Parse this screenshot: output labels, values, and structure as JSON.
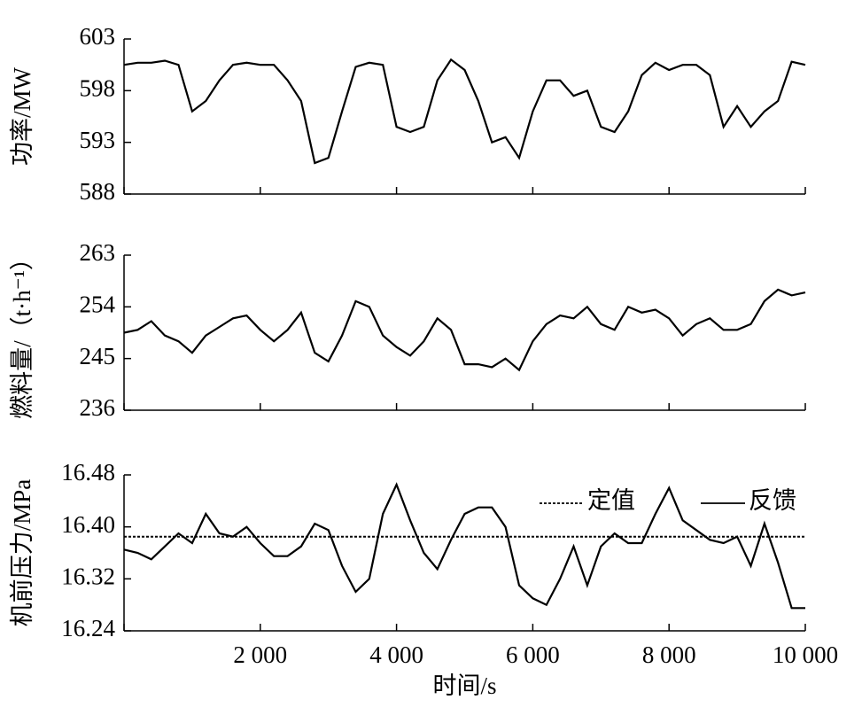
{
  "chart_data": [
    {
      "type": "line",
      "ylabel": "功率/MW",
      "x": [
        0,
        200,
        400,
        600,
        800,
        1000,
        1200,
        1400,
        1600,
        1800,
        2000,
        2200,
        2400,
        2600,
        2800,
        3000,
        3200,
        3400,
        3600,
        3800,
        4000,
        4200,
        4400,
        4600,
        4800,
        5000,
        5200,
        5400,
        5600,
        5800,
        6000,
        6200,
        6400,
        6600,
        6800,
        7000,
        7200,
        7400,
        7600,
        7800,
        8000,
        8200,
        8400,
        8600,
        8800,
        9000,
        9200,
        9400,
        9600,
        9800,
        10000
      ],
      "series": [
        {
          "color": "#000000",
          "values": [
            600.5,
            600.7,
            600.7,
            600.9,
            600.5,
            596,
            597,
            599,
            600.5,
            600.7,
            600.5,
            600.5,
            599,
            597,
            591,
            591.5,
            596,
            600.3,
            600.7,
            600.5,
            594.5,
            594,
            594.5,
            599,
            601,
            600,
            597,
            593,
            593.5,
            591.5,
            596,
            599,
            599,
            597.5,
            598,
            594.5,
            594,
            596,
            599.5,
            600.7,
            600,
            600.5,
            600.5,
            599.5,
            594.5,
            596.5,
            594.5,
            596,
            597,
            600.8,
            600.5
          ]
        }
      ],
      "xlim": [
        0,
        10000
      ],
      "ylim": [
        588,
        603
      ],
      "xticks": [
        0,
        2000,
        4000,
        6000,
        8000,
        10000
      ],
      "yticks": [
        588,
        593,
        598,
        603
      ]
    },
    {
      "type": "line",
      "ylabel": "燃料量/（t·h⁻¹）",
      "x": [
        0,
        200,
        400,
        600,
        800,
        1000,
        1200,
        1400,
        1600,
        1800,
        2000,
        2200,
        2400,
        2600,
        2800,
        3000,
        3200,
        3400,
        3600,
        3800,
        4000,
        4200,
        4400,
        4600,
        4800,
        5000,
        5200,
        5400,
        5600,
        5800,
        6000,
        6200,
        6400,
        6600,
        6800,
        7000,
        7200,
        7400,
        7600,
        7800,
        8000,
        8200,
        8400,
        8600,
        8800,
        9000,
        9200,
        9400,
        9600,
        9800,
        10000
      ],
      "series": [
        {
          "color": "#000000",
          "values": [
            249.5,
            250,
            251.5,
            249,
            248,
            246,
            249,
            250.5,
            252,
            252.5,
            250,
            248,
            250,
            253,
            246,
            244.5,
            249,
            255,
            254,
            249,
            247,
            245.5,
            248,
            252,
            250,
            244,
            244,
            243.5,
            245,
            243,
            248,
            251,
            252.5,
            252,
            254,
            251,
            250,
            254,
            253,
            253.5,
            252,
            249,
            251,
            252,
            250,
            250,
            251,
            255,
            257,
            256,
            256.5
          ]
        }
      ],
      "xlim": [
        0,
        10000
      ],
      "ylim": [
        236,
        263
      ],
      "xticks": [
        0,
        2000,
        4000,
        6000,
        8000,
        10000
      ],
      "yticks": [
        236,
        245,
        254,
        263
      ]
    },
    {
      "type": "line",
      "ylabel": "机前压力/MPa",
      "xlabel": "时间/s",
      "legend": "upper right",
      "x": [
        0,
        200,
        400,
        600,
        800,
        1000,
        1200,
        1400,
        1600,
        1800,
        2000,
        2200,
        2400,
        2600,
        2800,
        3000,
        3200,
        3400,
        3600,
        3800,
        4000,
        4200,
        4400,
        4600,
        4800,
        5000,
        5200,
        5400,
        5600,
        5800,
        6000,
        6200,
        6400,
        6600,
        6800,
        7000,
        7200,
        7400,
        7600,
        7800,
        8000,
        8200,
        8400,
        8600,
        8800,
        9000,
        9200,
        9400,
        9600,
        9800,
        10000
      ],
      "series": [
        {
          "name": "定值",
          "color": "#000000",
          "dash": true,
          "values": [
            16.385,
            16.385,
            16.385,
            16.385,
            16.385,
            16.385,
            16.385,
            16.385,
            16.385,
            16.385,
            16.385,
            16.385,
            16.385,
            16.385,
            16.385,
            16.385,
            16.385,
            16.385,
            16.385,
            16.385,
            16.385,
            16.385,
            16.385,
            16.385,
            16.385,
            16.385,
            16.385,
            16.385,
            16.385,
            16.385,
            16.385,
            16.385,
            16.385,
            16.385,
            16.385,
            16.385,
            16.385,
            16.385,
            16.385,
            16.385,
            16.385,
            16.385,
            16.385,
            16.385,
            16.385,
            16.385,
            16.385,
            16.385,
            16.385,
            16.385,
            16.385
          ]
        },
        {
          "name": "反馈",
          "color": "#000000",
          "dash": false,
          "values": [
            16.365,
            16.36,
            16.35,
            16.37,
            16.39,
            16.375,
            16.42,
            16.39,
            16.385,
            16.4,
            16.375,
            16.355,
            16.355,
            16.37,
            16.405,
            16.395,
            16.34,
            16.3,
            16.32,
            16.42,
            16.465,
            16.41,
            16.36,
            16.335,
            16.38,
            16.42,
            16.43,
            16.43,
            16.4,
            16.31,
            16.29,
            16.28,
            16.32,
            16.37,
            16.31,
            16.37,
            16.39,
            16.375,
            16.375,
            16.42,
            16.46,
            16.41,
            16.395,
            16.38,
            16.375,
            16.385,
            16.34,
            16.405,
            16.345,
            16.275,
            16.275
          ]
        }
      ],
      "xlim": [
        0,
        10000
      ],
      "ylim": [
        16.24,
        16.48
      ],
      "xticks": [
        0,
        {
          "value": 2000,
          "label": "2 000"
        },
        {
          "value": 4000,
          "label": "4 000"
        },
        {
          "value": 6000,
          "label": "6 000"
        },
        {
          "value": 8000,
          "label": "8 000"
        },
        {
          "value": 10000,
          "label": "10 000"
        }
      ],
      "yticks": [
        16.24,
        16.32,
        {
          "value": 16.4,
          "label": "16.40"
        },
        16.48
      ]
    }
  ]
}
